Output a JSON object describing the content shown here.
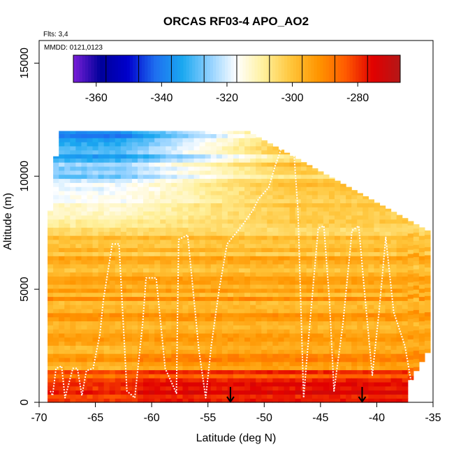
{
  "chart_data": {
    "type": "heatmap",
    "title": "ORCAS RF03-4 APO_AO2",
    "notes": {
      "flights": "Flts: 3,4",
      "dates": "MMDD: 0121,0123"
    },
    "xlabel": "Latitude (deg N)",
    "ylabel": "Altitude (m)",
    "xlim": [
      -70,
      -35
    ],
    "ylim": [
      0,
      16000
    ],
    "x_ticks": [
      -70,
      -65,
      -60,
      -55,
      -50,
      -45,
      -40,
      -35
    ],
    "y_ticks": [
      0,
      5000,
      10000,
      15000
    ],
    "colorbar": {
      "range": [
        -367,
        -267
      ],
      "ticks": [
        -360,
        -340,
        -320,
        -300,
        -280
      ],
      "colors": [
        "#7a1fd8",
        "#00009a",
        "#0000cc",
        "#1e6ef0",
        "#1aa8f0",
        "#8fd0ff",
        "#ffffff",
        "#fff09a",
        "#ffc53a",
        "#ff9500",
        "#ff5a00",
        "#e10000",
        "#b31818"
      ]
    },
    "grid": false,
    "markers": [
      {
        "type": "down-arrow",
        "x": -53,
        "y": 0
      },
      {
        "type": "down-arrow",
        "x": -41.3,
        "y": 0
      }
    ],
    "flight_track": [
      [
        -69,
        500
      ],
      [
        -68.8,
        300
      ],
      [
        -68.5,
        1500
      ],
      [
        -68,
        1600
      ],
      [
        -67.7,
        200
      ],
      [
        -67,
        1500
      ],
      [
        -66.6,
        1500
      ],
      [
        -66.2,
        300
      ],
      [
        -65.8,
        1400
      ],
      [
        -65.2,
        1500
      ],
      [
        -64.6,
        3000
      ],
      [
        -64.3,
        4500
      ],
      [
        -63.5,
        7000
      ],
      [
        -62.9,
        7000
      ],
      [
        -62.2,
        500
      ],
      [
        -61.5,
        200
      ],
      [
        -60.8,
        3500
      ],
      [
        -60.5,
        5500
      ],
      [
        -59.6,
        5500
      ],
      [
        -58.8,
        1500
      ],
      [
        -57.8,
        400
      ],
      [
        -57.6,
        7200
      ],
      [
        -56.8,
        7400
      ],
      [
        -55.8,
        2300
      ],
      [
        -55.2,
        200
      ],
      [
        -54.7,
        2500
      ],
      [
        -54,
        5000
      ],
      [
        -53.3,
        7000
      ],
      [
        -52,
        7800
      ],
      [
        -51,
        8500
      ],
      [
        -50.5,
        9000
      ],
      [
        -49.6,
        9500
      ],
      [
        -49,
        10500
      ],
      [
        -48.5,
        11200
      ],
      [
        -48,
        11600
      ],
      [
        -47.5,
        12000
      ],
      [
        -47,
        8500
      ],
      [
        -46.5,
        200
      ],
      [
        -46.2,
        2000
      ],
      [
        -45.2,
        7700
      ],
      [
        -44.7,
        7800
      ],
      [
        -44.2,
        4500
      ],
      [
        -43.8,
        500
      ],
      [
        -43,
        3500
      ],
      [
        -42.2,
        7600
      ],
      [
        -41.6,
        7800
      ],
      [
        -41.2,
        5500
      ],
      [
        -40.4,
        1200
      ],
      [
        -39.8,
        4000
      ],
      [
        -39.2,
        7300
      ],
      [
        -38.5,
        4000
      ],
      [
        -37.5,
        2500
      ],
      [
        -36.8,
        500
      ]
    ]
  }
}
